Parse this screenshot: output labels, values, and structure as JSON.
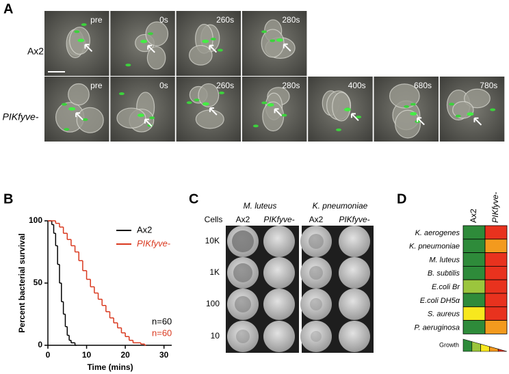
{
  "panel_a": {
    "label": "A",
    "rows": [
      {
        "name": "Ax2",
        "frames": [
          "pre",
          "0s",
          "260s",
          "280s"
        ]
      },
      {
        "name": "PIKfyve-",
        "frames": [
          "pre",
          "0s",
          "260s",
          "280s",
          "400s",
          "680s",
          "780s"
        ]
      }
    ]
  },
  "chart_data": {
    "type": "line",
    "panel_label": "B",
    "ylabel": "Percent bacterial survival",
    "xlabel": "Time (mins)",
    "xlim": [
      0,
      32
    ],
    "ylim": [
      0,
      100
    ],
    "xticks": [
      0,
      10,
      20,
      30
    ],
    "yticks": [
      0,
      50,
      100
    ],
    "step": true,
    "legend": "upper right",
    "series": [
      {
        "name": "Ax2",
        "color": "#000000",
        "x": [
          0,
          1,
          1.5,
          2,
          2.5,
          3,
          3.5,
          4,
          4.5,
          5,
          5.5,
          6,
          7
        ],
        "values": [
          100,
          97,
          90,
          80,
          65,
          50,
          35,
          25,
          15,
          8,
          4,
          2,
          0
        ]
      },
      {
        "name": "PIKfyve-",
        "color": "#d9381e",
        "x": [
          0,
          2,
          3,
          4,
          5,
          6,
          7,
          8,
          9,
          10,
          11,
          12,
          13,
          14,
          15,
          16,
          17,
          18,
          19,
          20,
          21,
          22,
          24,
          25
        ],
        "values": [
          100,
          98,
          95,
          90,
          85,
          80,
          75,
          68,
          60,
          53,
          47,
          42,
          37,
          32,
          27,
          22,
          18,
          14,
          10,
          7,
          4,
          2,
          1,
          0
        ]
      }
    ],
    "annotations": [
      {
        "text": "n=60",
        "color": "#000000"
      },
      {
        "text": "n=60",
        "color": "#d9381e"
      }
    ]
  },
  "panel_c": {
    "label": "C",
    "groups": [
      "M. luteus",
      "K. pneumoniae"
    ],
    "row_header": "Cells",
    "columns": [
      "Ax2",
      "PIKfyve-",
      "Ax2",
      "PIKfyve-"
    ],
    "rows": [
      "10K",
      "1K",
      "100",
      "10"
    ]
  },
  "panel_d": {
    "label": "D",
    "columns": [
      "Ax2",
      "PIKfyve-"
    ],
    "rows": [
      {
        "name": "K. aerogenes",
        "colors": [
          "#2e8b3a",
          "#e8321e"
        ]
      },
      {
        "name": "K. pneumoniae",
        "colors": [
          "#2e8b3a",
          "#f39a1e"
        ]
      },
      {
        "name": "M. luteus",
        "colors": [
          "#2e8b3a",
          "#e8321e"
        ]
      },
      {
        "name": "B. subtilis",
        "colors": [
          "#2e8b3a",
          "#e8321e"
        ]
      },
      {
        "name": "E.coli Br",
        "colors": [
          "#9bc53d",
          "#e8321e"
        ]
      },
      {
        "name": "E.coli DH5α",
        "colors": [
          "#2e8b3a",
          "#e8321e"
        ]
      },
      {
        "name": "S. aureus",
        "colors": [
          "#f7e81e",
          "#e8321e"
        ]
      },
      {
        "name": "P. aeruginosa",
        "colors": [
          "#2e8b3a",
          "#f39a1e"
        ]
      }
    ],
    "legend": "Growth",
    "legend_colors": [
      "#2e8b3a",
      "#9bc53d",
      "#f7e81e",
      "#f39a1e",
      "#e8321e"
    ]
  }
}
